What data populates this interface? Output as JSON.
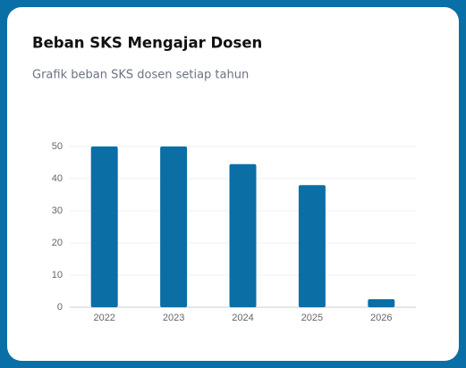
{
  "chart_data": {
    "type": "bar",
    "title": "Beban SKS Mengajar Dosen",
    "subtitle": "Grafik beban SKS dosen setiap tahun",
    "categories": [
      "2022",
      "2023",
      "2024",
      "2025",
      "2026"
    ],
    "values": [
      50,
      50,
      44.5,
      38,
      2.5
    ],
    "color": "#0b6fa6",
    "ylim": [
      0,
      50
    ],
    "yticks": [
      0,
      10,
      20,
      30,
      40,
      50
    ],
    "grid": true
  }
}
